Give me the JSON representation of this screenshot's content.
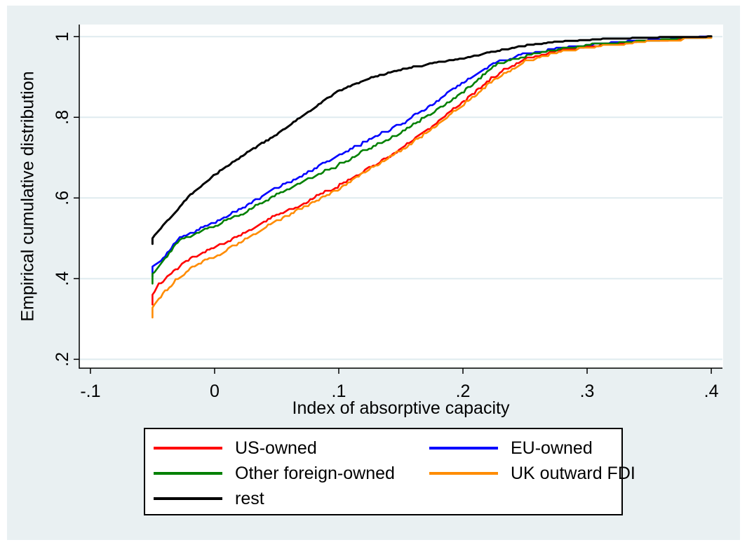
{
  "colors": {
    "canvas_background": "#e9f0f2",
    "plot_background": "#ffffff",
    "gridline": "#dfebef",
    "axis": "#000000",
    "text": "#000000",
    "legend_background": "#ffffff",
    "legend_border": "#000000"
  },
  "chart_data": {
    "type": "line",
    "subtype": "empirical-cdf",
    "title": "",
    "xlabel": "Index of absorptive capacity",
    "ylabel": "Empirical cumulative distribution",
    "xlim": [
      -0.109,
      0.409
    ],
    "ylim": [
      0.178,
      1.03
    ],
    "grid": "horizontal",
    "legend_position": "bottom",
    "xticks": {
      "values": [
        -0.1,
        0,
        0.1,
        0.2,
        0.3,
        0.4
      ],
      "labels": [
        "-.1",
        "0",
        ".1",
        ".2",
        ".3",
        ".4"
      ]
    },
    "yticks": {
      "values": [
        0.2,
        0.4,
        0.6,
        0.8,
        1.0
      ],
      "labels": [
        ".2",
        ".4",
        ".6",
        ".8",
        "1"
      ]
    },
    "series": [
      {
        "name": "US-owned",
        "color": "#ff0000",
        "width": 2.6,
        "x": [
          -0.05,
          -0.045,
          -0.04,
          -0.03,
          -0.02,
          -0.01,
          0,
          0.025,
          0.05,
          0.075,
          0.1,
          0.125,
          0.15,
          0.175,
          0.2,
          0.225,
          0.25,
          0.275,
          0.3,
          0.325,
          0.35,
          0.375,
          0.4
        ],
        "y": [
          0.36,
          0.385,
          0.4,
          0.425,
          0.448,
          0.462,
          0.476,
          0.515,
          0.556,
          0.592,
          0.63,
          0.676,
          0.72,
          0.778,
          0.838,
          0.902,
          0.945,
          0.963,
          0.974,
          0.982,
          0.988,
          0.993,
          0.997
        ]
      },
      {
        "name": "EU-owned",
        "color": "#0000ff",
        "width": 2.6,
        "x": [
          -0.05,
          -0.045,
          -0.04,
          -0.03,
          -0.02,
          -0.01,
          0,
          0.025,
          0.05,
          0.075,
          0.1,
          0.125,
          0.15,
          0.175,
          0.2,
          0.225,
          0.25,
          0.275,
          0.3,
          0.325,
          0.35,
          0.375,
          0.4
        ],
        "y": [
          0.43,
          0.444,
          0.455,
          0.497,
          0.513,
          0.527,
          0.54,
          0.578,
          0.625,
          0.663,
          0.705,
          0.745,
          0.782,
          0.83,
          0.886,
          0.934,
          0.956,
          0.97,
          0.979,
          0.985,
          0.99,
          0.995,
          0.998
        ]
      },
      {
        "name": "Other foreign-owned",
        "color": "#008000",
        "width": 2.6,
        "x": [
          -0.05,
          -0.045,
          -0.04,
          -0.03,
          -0.02,
          -0.01,
          0,
          0.025,
          0.05,
          0.075,
          0.1,
          0.125,
          0.15,
          0.175,
          0.2,
          0.225,
          0.25,
          0.275,
          0.3,
          0.325,
          0.35,
          0.375,
          0.4
        ],
        "y": [
          0.412,
          0.432,
          0.448,
          0.49,
          0.505,
          0.518,
          0.53,
          0.565,
          0.608,
          0.645,
          0.682,
          0.724,
          0.762,
          0.81,
          0.862,
          0.928,
          0.952,
          0.967,
          0.977,
          0.984,
          0.989,
          0.994,
          0.998
        ]
      },
      {
        "name": "UK outward FDI",
        "color": "#ff8c00",
        "width": 2.6,
        "x": [
          -0.05,
          -0.045,
          -0.04,
          -0.03,
          -0.02,
          -0.01,
          0,
          0.025,
          0.05,
          0.075,
          0.1,
          0.125,
          0.15,
          0.175,
          0.2,
          0.225,
          0.25,
          0.275,
          0.3,
          0.325,
          0.35,
          0.375,
          0.4
        ],
        "y": [
          0.328,
          0.352,
          0.368,
          0.398,
          0.425,
          0.44,
          0.454,
          0.497,
          0.543,
          0.583,
          0.622,
          0.672,
          0.717,
          0.772,
          0.83,
          0.892,
          0.938,
          0.959,
          0.971,
          0.98,
          0.986,
          0.992,
          0.997
        ]
      },
      {
        "name": "rest",
        "color": "#000000",
        "width": 3,
        "x": [
          -0.05,
          -0.045,
          -0.04,
          -0.035,
          -0.03,
          -0.025,
          -0.02,
          -0.015,
          -0.01,
          -0.005,
          0,
          0.025,
          0.05,
          0.075,
          0.1,
          0.125,
          0.15,
          0.175,
          0.2,
          0.225,
          0.25,
          0.275,
          0.3,
          0.325,
          0.35,
          0.375,
          0.4
        ],
        "y": [
          0.5,
          0.52,
          0.537,
          0.552,
          0.57,
          0.589,
          0.607,
          0.62,
          0.632,
          0.645,
          0.657,
          0.71,
          0.758,
          0.812,
          0.866,
          0.897,
          0.918,
          0.933,
          0.946,
          0.963,
          0.978,
          0.986,
          0.992,
          0.995,
          0.997,
          0.9985,
          0.999
        ]
      }
    ]
  },
  "legend": {
    "entries": [
      {
        "label": "US-owned",
        "color": "#ff0000"
      },
      {
        "label": "EU-owned",
        "color": "#0000ff"
      },
      {
        "label": "Other foreign-owned",
        "color": "#008000"
      },
      {
        "label": "UK outward FDI",
        "color": "#ff8c00"
      },
      {
        "label": "rest",
        "color": "#000000"
      }
    ]
  }
}
